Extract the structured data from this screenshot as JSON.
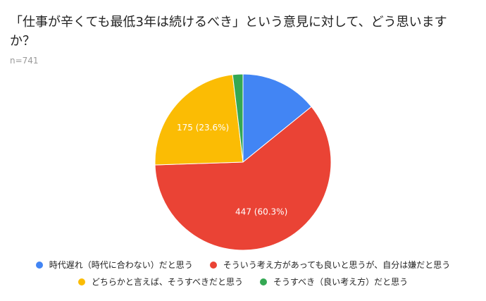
{
  "chart_data": {
    "type": "pie",
    "title": "「仕事が辛くても最低3年は続けるべき」という意見に対して、どう思いますか？",
    "subtitle": "n=741",
    "total": 741,
    "slices": [
      {
        "name": "時代遅れ（時代に合わない）だと思う",
        "value": 105,
        "percent": 14.2,
        "label": "",
        "color": "#4285f4"
      },
      {
        "name": "そういう考え方があっても良いと思うが、自分は嫌だと思う",
        "value": 447,
        "percent": 60.3,
        "label": "447 (60.3%)",
        "color": "#ea4335"
      },
      {
        "name": "どちらかと言えば、そうすべきだと思う",
        "value": 175,
        "percent": 23.6,
        "label": "175 (23.6%)",
        "color": "#fbbc04"
      },
      {
        "name": "そうすべき（良い考え方）だと思う",
        "value": 14,
        "percent": 1.9,
        "label": "",
        "color": "#34a853"
      }
    ],
    "legend_position": "bottom"
  }
}
